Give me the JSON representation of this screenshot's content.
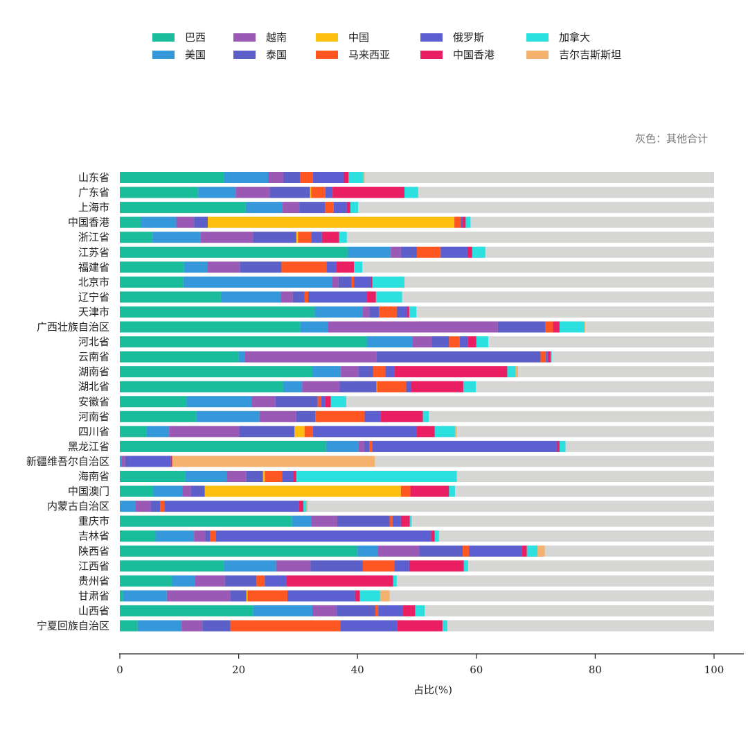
{
  "chart_data": {
    "type": "bar",
    "orientation": "horizontal",
    "stacked": true,
    "xlabel": "占比(%)",
    "xlim": [
      0,
      100
    ],
    "xticks": [
      0,
      20,
      40,
      60,
      80,
      100
    ],
    "note": "灰色：其他合计",
    "other_color": "#d6d6d4",
    "legend_position": "top",
    "categories": [
      "山东省",
      "广东省",
      "上海市",
      "中国香港",
      "浙江省",
      "江苏省",
      "福建省",
      "北京市",
      "辽宁省",
      "天津市",
      "广西壮族自治区",
      "河北省",
      "云南省",
      "湖南省",
      "湖北省",
      "安徽省",
      "河南省",
      "四川省",
      "黑龙江省",
      "新疆维吾尔自治区",
      "海南省",
      "中国澳门",
      "内蒙古自治区",
      "重庆市",
      "吉林省",
      "陕西省",
      "江西省",
      "贵州省",
      "甘肃省",
      "山西省",
      "宁夏回族自治区"
    ],
    "series": [
      {
        "name": "巴西",
        "color": "#1abc9c",
        "values": [
          17.6,
          13.2,
          21.2,
          3.5,
          5.5,
          38.4,
          10.8,
          10.7,
          17.0,
          32.8,
          30.4,
          41.5,
          20.0,
          32.4,
          27.5,
          11.2,
          12.9,
          4.5,
          34.7,
          0.0,
          11.0,
          5.6,
          0.0,
          29.0,
          6.0,
          40.0,
          17.6,
          8.8,
          0.5,
          22.4,
          3.0
        ]
      },
      {
        "name": "美国",
        "color": "#3498db",
        "values": [
          7.4,
          6.3,
          6.2,
          6.0,
          8.1,
          7.2,
          3.9,
          25.0,
          10.1,
          8.1,
          4.6,
          7.8,
          1.0,
          4.8,
          3.2,
          11.0,
          10.6,
          3.8,
          5.5,
          0.3,
          7.0,
          4.9,
          2.6,
          3.2,
          6.5,
          3.4,
          8.7,
          3.8,
          7.4,
          10.0,
          7.4
        ]
      },
      {
        "name": "越南",
        "color": "#9b59b6",
        "values": [
          2.5,
          5.7,
          2.8,
          3.0,
          8.8,
          1.7,
          5.5,
          1.1,
          2.0,
          1.1,
          28.6,
          3.2,
          22.2,
          3.0,
          6.3,
          4.0,
          6.2,
          11.8,
          1.0,
          0.6,
          3.3,
          1.5,
          2.6,
          4.4,
          1.9,
          7.0,
          5.8,
          5.1,
          10.7,
          4.1,
          3.5
        ]
      },
      {
        "name": "泰国",
        "color": "#5b5fc7",
        "values": [
          2.8,
          6.8,
          4.3,
          2.3,
          7.3,
          2.7,
          7.0,
          2.2,
          2.0,
          1.6,
          8.0,
          2.9,
          27.6,
          2.4,
          6.2,
          7.1,
          3.2,
          9.3,
          0.8,
          0.8,
          2.8,
          2.3,
          1.6,
          8.8,
          0.8,
          7.3,
          8.8,
          5.3,
          2.7,
          6.5,
          4.7
        ]
      },
      {
        "name": "中国",
        "color": "#fcbf0f",
        "values": [
          0,
          0.2,
          0,
          41.5,
          0.3,
          0,
          0,
          0,
          0,
          0,
          0,
          0,
          0,
          0,
          0.1,
          0,
          0,
          1.7,
          0,
          0,
          0.3,
          33.0,
          0,
          0,
          0,
          0,
          0,
          0,
          0.2,
          0,
          0
        ]
      },
      {
        "name": "马来西亚",
        "color": "#ff5722",
        "values": [
          2.2,
          2.4,
          1.5,
          1.1,
          2.2,
          4.0,
          7.6,
          0.4,
          0.6,
          3.0,
          1.3,
          1.8,
          0.9,
          2.1,
          4.9,
          0.6,
          8.3,
          1.4,
          0.5,
          0,
          2.9,
          1.6,
          0.7,
          0.5,
          1.0,
          1.1,
          5.3,
          1.4,
          6.7,
          0.5,
          18.5
        ]
      },
      {
        "name": "俄罗斯",
        "color": "#5b5fd0",
        "values": [
          5.2,
          1.2,
          2.2,
          0.3,
          1.8,
          4.5,
          1.6,
          2.8,
          9.9,
          1.7,
          0,
          1.4,
          0.3,
          1.5,
          0.8,
          0.7,
          2.7,
          17.4,
          31.1,
          6.9,
          1.9,
          0,
          22.6,
          1.4,
          36.2,
          8.9,
          2.5,
          3.6,
          11.4,
          4.1,
          9.6
        ]
      },
      {
        "name": "中国香港",
        "color": "#e91e63",
        "values": [
          0.8,
          12.1,
          0.6,
          0.5,
          2.9,
          0.8,
          3.0,
          0.3,
          1.5,
          0.4,
          1.1,
          1.4,
          0.5,
          19.0,
          8.8,
          0.9,
          7.1,
          3.1,
          0.4,
          0.2,
          0.5,
          6.5,
          0.8,
          1.5,
          0.6,
          0.8,
          9.2,
          18.0,
          0.8,
          2.1,
          7.6
        ]
      },
      {
        "name": "加拿大",
        "color": "#2de0e0",
        "values": [
          2.5,
          2.3,
          1.3,
          0.8,
          1.3,
          2.2,
          1.4,
          5.4,
          4.4,
          1.2,
          4.2,
          2.0,
          0.2,
          1.4,
          2.1,
          2.6,
          1.0,
          3.4,
          1.0,
          0,
          27.0,
          1.0,
          0.5,
          0.3,
          0.7,
          1.8,
          0.7,
          0.6,
          3.4,
          1.6,
          0.8
        ]
      },
      {
        "name": "吉尔吉斯斯坦",
        "color": "#f4b26e",
        "values": [
          0.2,
          0,
          0,
          0,
          0,
          0,
          0,
          0,
          0,
          0,
          0.1,
          0,
          0,
          0.4,
          0,
          0,
          0,
          0.3,
          0,
          34.1,
          0,
          0,
          0.2,
          0,
          0,
          1.2,
          0,
          0,
          1.6,
          0,
          0
        ]
      }
    ]
  }
}
